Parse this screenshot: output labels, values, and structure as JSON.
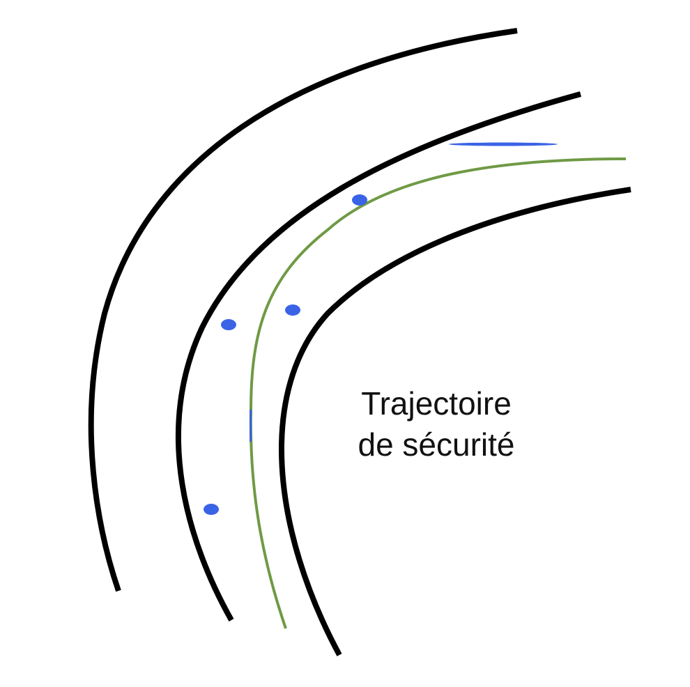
{
  "colors": {
    "road_edge": "#000000",
    "trajectory": "#6f9a45",
    "marker": "#3a63e6",
    "background": "#ffffff"
  },
  "label": {
    "line1": "Trajectoire",
    "line2": "de sécurité"
  },
  "elements": {
    "road_edges": 3,
    "trajectory_lines": 1,
    "markers": 5
  }
}
